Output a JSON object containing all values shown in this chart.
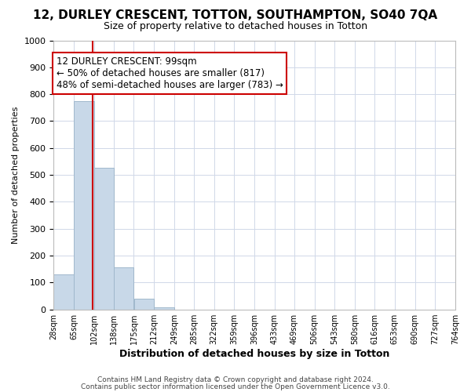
{
  "title": "12, DURLEY CRESCENT, TOTTON, SOUTHAMPTON, SO40 7QA",
  "subtitle": "Size of property relative to detached houses in Totton",
  "xlabel": "Distribution of detached houses by size in Totton",
  "ylabel": "Number of detached properties",
  "bin_edges": [
    28,
    65,
    102,
    138,
    175,
    212,
    249,
    285,
    322,
    359,
    396,
    433,
    469,
    506,
    543,
    580,
    616,
    653,
    690,
    727,
    764
  ],
  "bin_labels": [
    "28sqm",
    "65sqm",
    "102sqm",
    "138sqm",
    "175sqm",
    "212sqm",
    "249sqm",
    "285sqm",
    "322sqm",
    "359sqm",
    "396sqm",
    "433sqm",
    "469sqm",
    "506sqm",
    "543sqm",
    "580sqm",
    "616sqm",
    "653sqm",
    "690sqm",
    "727sqm",
    "764sqm"
  ],
  "counts": [
    130,
    775,
    525,
    155,
    40,
    8,
    0,
    0,
    0,
    0,
    0,
    0,
    0,
    0,
    0,
    0,
    0,
    0,
    0,
    0
  ],
  "bar_color": "#c8d8e8",
  "bar_edge_color": "#a0b8cc",
  "property_line_x": 99,
  "property_line_color": "#cc0000",
  "annotation_text": "12 DURLEY CRESCENT: 99sqm\n← 50% of detached houses are smaller (817)\n48% of semi-detached houses are larger (783) →",
  "annotation_box_color": "white",
  "annotation_box_edge_color": "#cc0000",
  "ylim": [
    0,
    1000
  ],
  "yticks": [
    0,
    100,
    200,
    300,
    400,
    500,
    600,
    700,
    800,
    900,
    1000
  ],
  "footer_line1": "Contains HM Land Registry data © Crown copyright and database right 2024.",
  "footer_line2": "Contains public sector information licensed under the Open Government Licence v3.0.",
  "background_color": "#ffffff",
  "grid_color": "#d0d8e8",
  "title_fontsize": 11,
  "subtitle_fontsize": 9,
  "ylabel_fontsize": 8,
  "xlabel_fontsize": 9,
  "ytick_fontsize": 8,
  "xtick_fontsize": 7,
  "annotation_fontsize": 8.5,
  "footer_fontsize": 6.5
}
